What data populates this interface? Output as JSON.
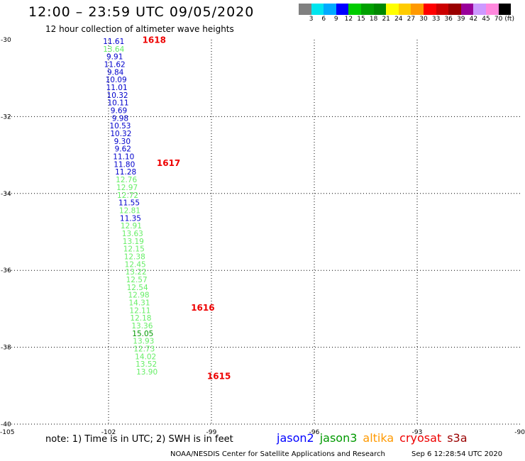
{
  "header": {
    "title": "12:00 – 23:59 UTC 09/05/2020",
    "subtitle": "12 hour collection of altimeter wave heights"
  },
  "legend": {
    "colors": [
      "#808080",
      "#00e5ee",
      "#00aaff",
      "#0000ff",
      "#00cc00",
      "#00a000",
      "#008800",
      "#ffff00",
      "#ffcc00",
      "#ff9900",
      "#ff0000",
      "#cc0000",
      "#990000",
      "#990099",
      "#cc99ff",
      "#ff88dd",
      "#000000"
    ],
    "labels": [
      "3",
      "6",
      "9",
      "12",
      "15",
      "18",
      "21",
      "24",
      "27",
      "30",
      "33",
      "36",
      "39",
      "42",
      "45",
      "70"
    ],
    "unit": "(ft)"
  },
  "axes": {
    "lat_ticks": [
      "-30",
      "-32",
      "-34",
      "-36",
      "-38",
      "-40"
    ],
    "lon_ticks": [
      "-105",
      "-102",
      "-99",
      "-96",
      "-93",
      "-90"
    ]
  },
  "track_labels": [
    "1618",
    "1617",
    "1616",
    "1615"
  ],
  "points": [
    {
      "lon": -101.85,
      "lat": -30.11,
      "v": "11.61",
      "sat": "jason2"
    },
    {
      "lon": -101.85,
      "lat": -30.31,
      "v": "13.64",
      "sat": "jason3"
    },
    {
      "lon": -101.82,
      "lat": -30.51,
      "v": "9.91",
      "sat": "jason2"
    },
    {
      "lon": -101.82,
      "lat": -30.71,
      "v": "11.62",
      "sat": "jason2"
    },
    {
      "lon": -101.8,
      "lat": -30.91,
      "v": "9.84",
      "sat": "jason2"
    },
    {
      "lon": -101.78,
      "lat": -31.11,
      "v": "10.09",
      "sat": "jason2"
    },
    {
      "lon": -101.76,
      "lat": -31.31,
      "v": "11.01",
      "sat": "jason2"
    },
    {
      "lon": -101.74,
      "lat": -31.51,
      "v": "10.32",
      "sat": "jason2"
    },
    {
      "lon": -101.72,
      "lat": -31.71,
      "v": "10.11",
      "sat": "jason2"
    },
    {
      "lon": -101.7,
      "lat": -31.91,
      "v": "9.69",
      "sat": "jason2"
    },
    {
      "lon": -101.66,
      "lat": -32.11,
      "v": "9.98",
      "sat": "jason2"
    },
    {
      "lon": -101.66,
      "lat": -32.31,
      "v": "10.53",
      "sat": "jason2"
    },
    {
      "lon": -101.64,
      "lat": -32.51,
      "v": "10.32",
      "sat": "jason2"
    },
    {
      "lon": -101.6,
      "lat": -32.71,
      "v": "9.30",
      "sat": "jason2"
    },
    {
      "lon": -101.58,
      "lat": -32.91,
      "v": "9.62",
      "sat": "jason2"
    },
    {
      "lon": -101.56,
      "lat": -33.11,
      "v": "11.10",
      "sat": "jason2"
    },
    {
      "lon": -101.54,
      "lat": -33.31,
      "v": "11.80",
      "sat": "jason2"
    },
    {
      "lon": -101.5,
      "lat": -33.51,
      "v": "11.28",
      "sat": "jason2"
    },
    {
      "lon": -101.48,
      "lat": -33.71,
      "v": "12.76",
      "sat": "jason3"
    },
    {
      "lon": -101.46,
      "lat": -33.91,
      "v": "12.97",
      "sat": "jason3"
    },
    {
      "lon": -101.44,
      "lat": -34.11,
      "v": "12.72",
      "sat": "jason3"
    },
    {
      "lon": -101.4,
      "lat": -34.31,
      "v": "11.55",
      "sat": "jason2"
    },
    {
      "lon": -101.38,
      "lat": -34.51,
      "v": "12.81",
      "sat": "jason3"
    },
    {
      "lon": -101.36,
      "lat": -34.71,
      "v": "11.35",
      "sat": "jason2"
    },
    {
      "lon": -101.34,
      "lat": -34.91,
      "v": "12.91",
      "sat": "jason3"
    },
    {
      "lon": -101.3,
      "lat": -35.11,
      "v": "13.63",
      "sat": "jason3"
    },
    {
      "lon": -101.28,
      "lat": -35.31,
      "v": "13.19",
      "sat": "jason3"
    },
    {
      "lon": -101.26,
      "lat": -35.51,
      "v": "12.15",
      "sat": "jason3"
    },
    {
      "lon": -101.24,
      "lat": -35.71,
      "v": "12.38",
      "sat": "jason3"
    },
    {
      "lon": -101.22,
      "lat": -35.91,
      "v": "12.45",
      "sat": "jason3"
    },
    {
      "lon": -101.2,
      "lat": -36.11,
      "v": "13.22",
      "sat": "jason3"
    },
    {
      "lon": -101.18,
      "lat": -36.31,
      "v": "12.57",
      "sat": "jason3"
    },
    {
      "lon": -101.16,
      "lat": -36.51,
      "v": "12.54",
      "sat": "jason3"
    },
    {
      "lon": -101.12,
      "lat": -36.71,
      "v": "12.98",
      "sat": "jason3"
    },
    {
      "lon": -101.1,
      "lat": -36.91,
      "v": "14.31",
      "sat": "jason3"
    },
    {
      "lon": -101.08,
      "lat": -37.11,
      "v": "12.11",
      "sat": "jason3"
    },
    {
      "lon": -101.06,
      "lat": -37.31,
      "v": "12.18",
      "sat": "jason3"
    },
    {
      "lon": -101.02,
      "lat": -37.51,
      "v": "13.36",
      "sat": "jason3"
    },
    {
      "lon": -101.0,
      "lat": -37.71,
      "v": "15.05",
      "sat": "jason3_dark"
    },
    {
      "lon": -100.98,
      "lat": -37.91,
      "v": "13.93",
      "sat": "jason3"
    },
    {
      "lon": -100.96,
      "lat": -38.11,
      "v": "12.73",
      "sat": "jason3"
    },
    {
      "lon": -100.92,
      "lat": -38.31,
      "v": "14.02",
      "sat": "jason3"
    },
    {
      "lon": -100.9,
      "lat": -38.51,
      "v": "13.52",
      "sat": "jason3"
    },
    {
      "lon": -100.88,
      "lat": -38.71,
      "v": "13.90",
      "sat": "jason3"
    }
  ],
  "colors": {
    "jason2": "#0000cc",
    "jason3": "#66ee66",
    "jason3_dark": "#009900",
    "track_label": "#ee0000",
    "grid": "#000000"
  },
  "footer": {
    "note": "note: 1) Time is in UTC; 2) SWH is in feet",
    "satellites": [
      {
        "name": "jason2",
        "color": "#0000ff"
      },
      {
        "name": "jason3",
        "color": "#009900"
      },
      {
        "name": "altika",
        "color": "#ff9900"
      },
      {
        "name": "cryosat",
        "color": "#ee0000"
      },
      {
        "name": "s3a",
        "color": "#990000"
      }
    ],
    "credit": "NOAA/NESDIS Center for Satellite Applications and Research",
    "timestamp": "Sep  6 12:28:54 UTC 2020"
  }
}
